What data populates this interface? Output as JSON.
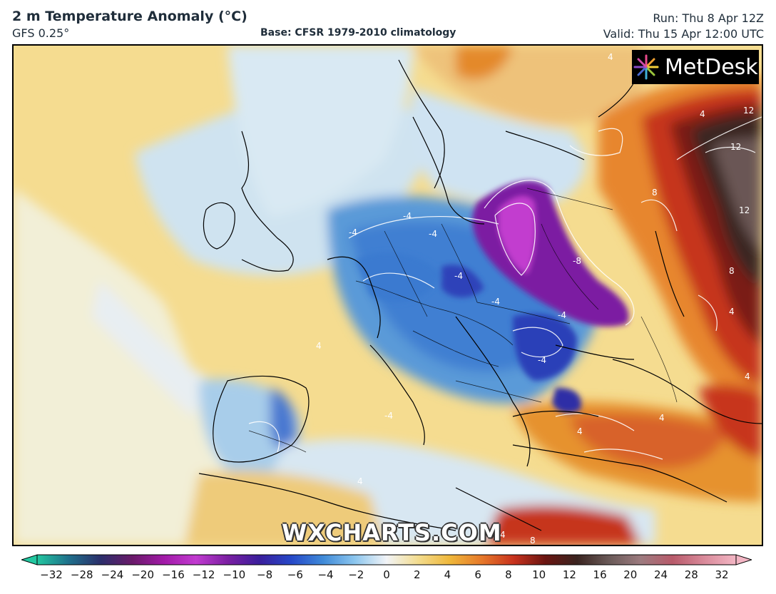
{
  "header": {
    "title": "2 m Temperature Anomaly (°C)",
    "model": "GFS 0.25°",
    "base": "Base: CFSR 1979-2010 climatology",
    "run": "Run: Thu 8 Apr 12Z",
    "valid": "Valid: Thu 15 Apr 12:00 UTC"
  },
  "logo": {
    "text": "MetDesk",
    "icon": "metdesk-starburst-icon"
  },
  "watermark": "WXCHARTS.COM",
  "contour_labels": [
    "-4",
    "-4",
    "-4",
    "-4",
    "-4",
    "-4",
    "-8",
    "-4",
    "-4",
    "4",
    "4",
    "4",
    "4",
    "8",
    "8",
    "12",
    "12",
    "12",
    "4",
    "4",
    "4",
    "4",
    "4",
    "8"
  ],
  "colorbar": {
    "ticks": [
      "−32",
      "−28",
      "−24",
      "−20",
      "−16",
      "−12",
      "−10",
      "−8",
      "−6",
      "−4",
      "−2",
      "0",
      "2",
      "4",
      "6",
      "8",
      "10",
      "12",
      "16",
      "20",
      "24",
      "28",
      "32"
    ],
    "colors": [
      "#22c7a0",
      "#1f6f8b",
      "#2b2f6b",
      "#6a1a6a",
      "#a21aa8",
      "#c13bd0",
      "#7b1fa2",
      "#3a1e9c",
      "#2648c8",
      "#3f8ad8",
      "#8cc6ee",
      "#f2f4f7",
      "#f3dc8e",
      "#efb73a",
      "#e6782a",
      "#c8321d",
      "#6a1511",
      "#3a2420",
      "#6a5a58",
      "#9c7b7f",
      "#b85a6a",
      "#d98a9a",
      "#f3b6c4"
    ]
  }
}
